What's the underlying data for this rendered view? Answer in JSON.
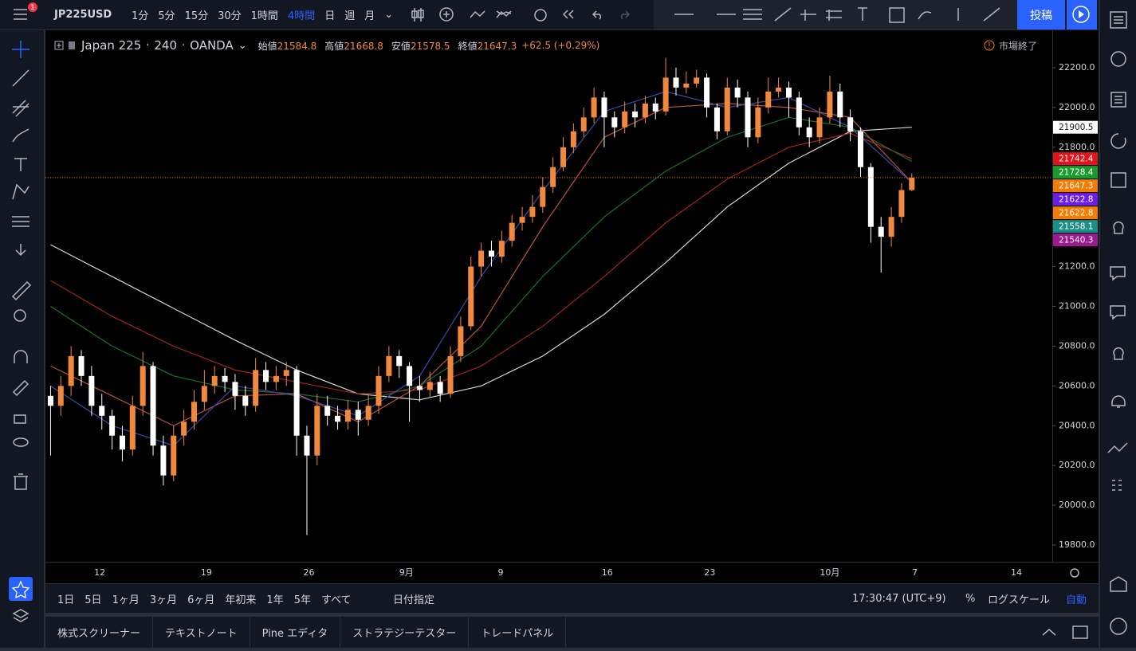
{
  "toolbar": {
    "symbol": "JP225USD",
    "notification_count": 1,
    "intervals": [
      "1分",
      "5分",
      "15分",
      "30分",
      "1時間",
      "4時間",
      "日",
      "週",
      "月"
    ],
    "active_interval": "4時間",
    "publish": "投稿"
  },
  "legend": {
    "symbol": "Japan 225",
    "interval": "240",
    "source": "OANDA",
    "ohlc": [
      {
        "label": "始値",
        "value": 21584.8
      },
      {
        "label": "高値",
        "value": 21668.8
      },
      {
        "label": "安値",
        "value": 21578.5
      },
      {
        "label": "終値",
        "value": 21647.3
      }
    ],
    "change": "+62.5 (+0.29%)",
    "market_status": "市場終了"
  },
  "chart_data": {
    "type": "candlestick",
    "up_color": "#f0883e",
    "down_color": "#ffffff",
    "grid": false,
    "xlim": [
      -0.5,
      97.7
    ],
    "ylim": [
      19716,
      22388
    ],
    "yticks": [
      {
        "value": 19800,
        "label": "19800.0"
      },
      {
        "value": 20000,
        "label": "20000.0"
      },
      {
        "value": 20200,
        "label": "20200.0"
      },
      {
        "value": 20400,
        "label": "20400.0"
      },
      {
        "value": 20600,
        "label": "20600.0"
      },
      {
        "value": 20800,
        "label": "20800.0"
      },
      {
        "value": 21000,
        "label": "21000.0"
      },
      {
        "value": 21200,
        "label": "21200.0"
      },
      {
        "value": 21400,
        "label": "21400.0"
      },
      {
        "value": 21600,
        "label": "21600.0"
      },
      {
        "value": 21800,
        "label": "21800.0"
      },
      {
        "value": 22000,
        "label": "22000.0"
      },
      {
        "value": 22200,
        "label": "22200.0"
      }
    ],
    "xticks": [
      {
        "value": 4.8,
        "label": "12"
      },
      {
        "value": 15.2,
        "label": "19"
      },
      {
        "value": 25.2,
        "label": "26"
      },
      {
        "value": 34.7,
        "label": "9月"
      },
      {
        "value": 43.9,
        "label": "9"
      },
      {
        "value": 54.3,
        "label": "16"
      },
      {
        "value": 64.3,
        "label": "23"
      },
      {
        "value": 76.0,
        "label": "10月"
      },
      {
        "value": 84.3,
        "label": "7"
      },
      {
        "value": 94.2,
        "label": "14"
      }
    ],
    "x": [
      0,
      1,
      2,
      3,
      4,
      5,
      6,
      7,
      8,
      9,
      10,
      11,
      12,
      13,
      14,
      15,
      16,
      17,
      18,
      19,
      20,
      21,
      22,
      23,
      24,
      25,
      26,
      27,
      28,
      29,
      30,
      31,
      32,
      33,
      34,
      35,
      36,
      37,
      38,
      39,
      40,
      41,
      42,
      43,
      44,
      45,
      46,
      47,
      48,
      49,
      50,
      51,
      52,
      53,
      54,
      55,
      56,
      57,
      58,
      59,
      60,
      61,
      62,
      63,
      64,
      65,
      66,
      67,
      68,
      69,
      70,
      71,
      72,
      73,
      74,
      75,
      76,
      77,
      78,
      79,
      80,
      81,
      82,
      83,
      84
    ],
    "open": [
      20550,
      20500,
      20600,
      20750,
      20650,
      20500,
      20450,
      20350,
      20280,
      20500,
      20700,
      20300,
      20150,
      20350,
      20420,
      20520,
      20600,
      20650,
      20620,
      20550,
      20500,
      20680,
      20620,
      20650,
      20680,
      20350,
      20250,
      20500,
      20450,
      20420,
      20480,
      20430,
      20500,
      20650,
      20750,
      20700,
      20600,
      20580,
      20620,
      20560,
      20750,
      20900,
      21200,
      21280,
      21250,
      21330,
      21420,
      21450,
      21500,
      21600,
      21700,
      21800,
      21880,
      21950,
      22050,
      21950,
      21900,
      21980,
      21950,
      22020,
      21980,
      22150,
      22100,
      22120,
      22150,
      22000,
      21880,
      22100,
      22050,
      21850,
      22000,
      22080,
      22100,
      22050,
      21900,
      21850,
      21950,
      22080,
      21950,
      21880,
      21700,
      21400,
      21350,
      21450,
      21584.8
    ],
    "high": [
      20600,
      20650,
      20800,
      20780,
      20700,
      20560,
      20480,
      20400,
      20550,
      20770,
      20720,
      20350,
      20400,
      20480,
      20580,
      20680,
      20700,
      20690,
      20660,
      20600,
      20740,
      20720,
      20700,
      20720,
      20700,
      20400,
      20560,
      20550,
      20500,
      20530,
      20520,
      20560,
      20700,
      20800,
      20780,
      20720,
      20650,
      20670,
      20650,
      20800,
      20950,
      21250,
      21320,
      21330,
      21380,
      21460,
      21500,
      21560,
      21650,
      21750,
      21850,
      21920,
      22000,
      22100,
      22080,
      21980,
      22030,
      22020,
      22060,
      22050,
      22250,
      22200,
      22180,
      22190,
      22170,
      22020,
      22150,
      22140,
      22080,
      22050,
      22150,
      22150,
      22130,
      22080,
      21950,
      22000,
      22160,
      22120,
      21990,
      21900,
      21720,
      21450,
      21500,
      21620,
      21668.8
    ],
    "low": [
      20250,
      20450,
      20550,
      20600,
      20450,
      20380,
      20280,
      20220,
      20250,
      20450,
      20250,
      20100,
      20120,
      20300,
      20380,
      20480,
      20560,
      20570,
      20480,
      20450,
      20470,
      20580,
      20580,
      20600,
      20250,
      19850,
      20200,
      20400,
      20380,
      20380,
      20350,
      20400,
      20460,
      20620,
      20640,
      20420,
      20520,
      20540,
      20520,
      20540,
      20720,
      20880,
      21150,
      21200,
      21220,
      21300,
      21380,
      21420,
      21470,
      21570,
      21680,
      21770,
      21850,
      21920,
      21800,
      21850,
      21870,
      21900,
      21920,
      21940,
      21960,
      22060,
      22070,
      22100,
      21950,
      21840,
      21860,
      22000,
      21800,
      21820,
      21970,
      22050,
      21950,
      21860,
      21800,
      21820,
      21920,
      21900,
      21830,
      21650,
      21320,
      21170,
      21300,
      21420,
      21578.5
    ],
    "close": [
      20500,
      20600,
      20750,
      20650,
      20500,
      20450,
      20350,
      20280,
      20500,
      20700,
      20300,
      20150,
      20350,
      20420,
      20520,
      20600,
      20650,
      20620,
      20550,
      20500,
      20680,
      20620,
      20650,
      20680,
      20350,
      20250,
      20500,
      20450,
      20420,
      20480,
      20430,
      20500,
      20650,
      20750,
      20700,
      20600,
      20580,
      20620,
      20560,
      20750,
      20900,
      21200,
      21280,
      21250,
      21330,
      21420,
      21450,
      21500,
      21600,
      21700,
      21800,
      21880,
      21950,
      22050,
      21950,
      21900,
      21980,
      21950,
      22020,
      21980,
      22150,
      22100,
      22120,
      22150,
      22000,
      21880,
      22100,
      22050,
      21850,
      22000,
      22080,
      22100,
      22050,
      21900,
      21850,
      21950,
      22080,
      21950,
      21880,
      21700,
      21400,
      21350,
      21450,
      21584.8,
      21647.3
    ],
    "series": [
      {
        "color": "#d6d6d6",
        "x": [
          0,
          6,
          12,
          18,
          24,
          30,
          36,
          42,
          48,
          54,
          60,
          66,
          72,
          78,
          84
        ],
        "values": [
          21310,
          21150,
          20990,
          20830,
          20680,
          20560,
          20530,
          20600,
          20750,
          20960,
          21220,
          21500,
          21720,
          21880,
          21900.5
        ]
      },
      {
        "color": "#a52222",
        "x": [
          0,
          6,
          12,
          18,
          24,
          30,
          36,
          42,
          48,
          54,
          60,
          66,
          72,
          78,
          84
        ],
        "values": [
          21130,
          20950,
          20800,
          20680,
          20620,
          20560,
          20580,
          20700,
          20900,
          21150,
          21420,
          21640,
          21800,
          21870,
          21742.4
        ]
      },
      {
        "color": "#1f6e2c",
        "x": [
          0,
          6,
          12,
          18,
          24,
          30,
          36,
          42,
          48,
          54,
          60,
          66,
          72,
          78,
          84
        ],
        "values": [
          21000,
          20800,
          20650,
          20580,
          20560,
          20520,
          20600,
          20800,
          21150,
          21450,
          21680,
          21850,
          21950,
          21900,
          21728.4
        ]
      },
      {
        "color": "#b5533d",
        "x": [
          0,
          6,
          12,
          18,
          24,
          30,
          36,
          42,
          48,
          54,
          60,
          66,
          72,
          78,
          84
        ],
        "values": [
          20700,
          20550,
          20400,
          20550,
          20560,
          20420,
          20600,
          20900,
          21400,
          21850,
          22000,
          22020,
          22000,
          21950,
          21622.8
        ]
      },
      {
        "color": "#3a4aa8",
        "x": [
          0,
          6,
          12,
          18,
          24,
          30,
          36,
          42,
          48,
          54,
          60,
          66,
          72,
          78,
          84
        ],
        "values": [
          20600,
          20400,
          20300,
          20600,
          20550,
          20450,
          20650,
          21150,
          21580,
          21980,
          22080,
          22000,
          22050,
          21900,
          21622.8
        ]
      }
    ],
    "price_tags": [
      {
        "value": 21900.5,
        "color": "#ffffff"
      },
      {
        "value": 21742.4,
        "color": "#e0141a"
      },
      {
        "value": 21728.4,
        "color": "#189a2c"
      },
      {
        "value": 21647.3,
        "color": "#f57c00"
      },
      {
        "value": 21622.8,
        "color": "#6a1ee6"
      },
      {
        "value": 21622.8,
        "color": "#f57c00"
      },
      {
        "value": 21558.1,
        "color": "#1b8f86"
      },
      {
        "value": 21540.3,
        "color": "#9c1a8f"
      }
    ]
  },
  "bottom_bar": {
    "ranges": [
      "1日",
      "5日",
      "1ヶ月",
      "3ヶ月",
      "6ヶ月",
      "年初来",
      "1年",
      "5年",
      "すべて"
    ],
    "goto": "日付指定",
    "clock": "17:30:47 (UTC+9)",
    "percent": "%",
    "log": "ログスケール",
    "auto": "自動"
  },
  "panel_tabs": [
    "株式スクリーナー",
    "テキストノート",
    "Pine エディタ",
    "ストラテジーテスター",
    "トレードパネル"
  ]
}
